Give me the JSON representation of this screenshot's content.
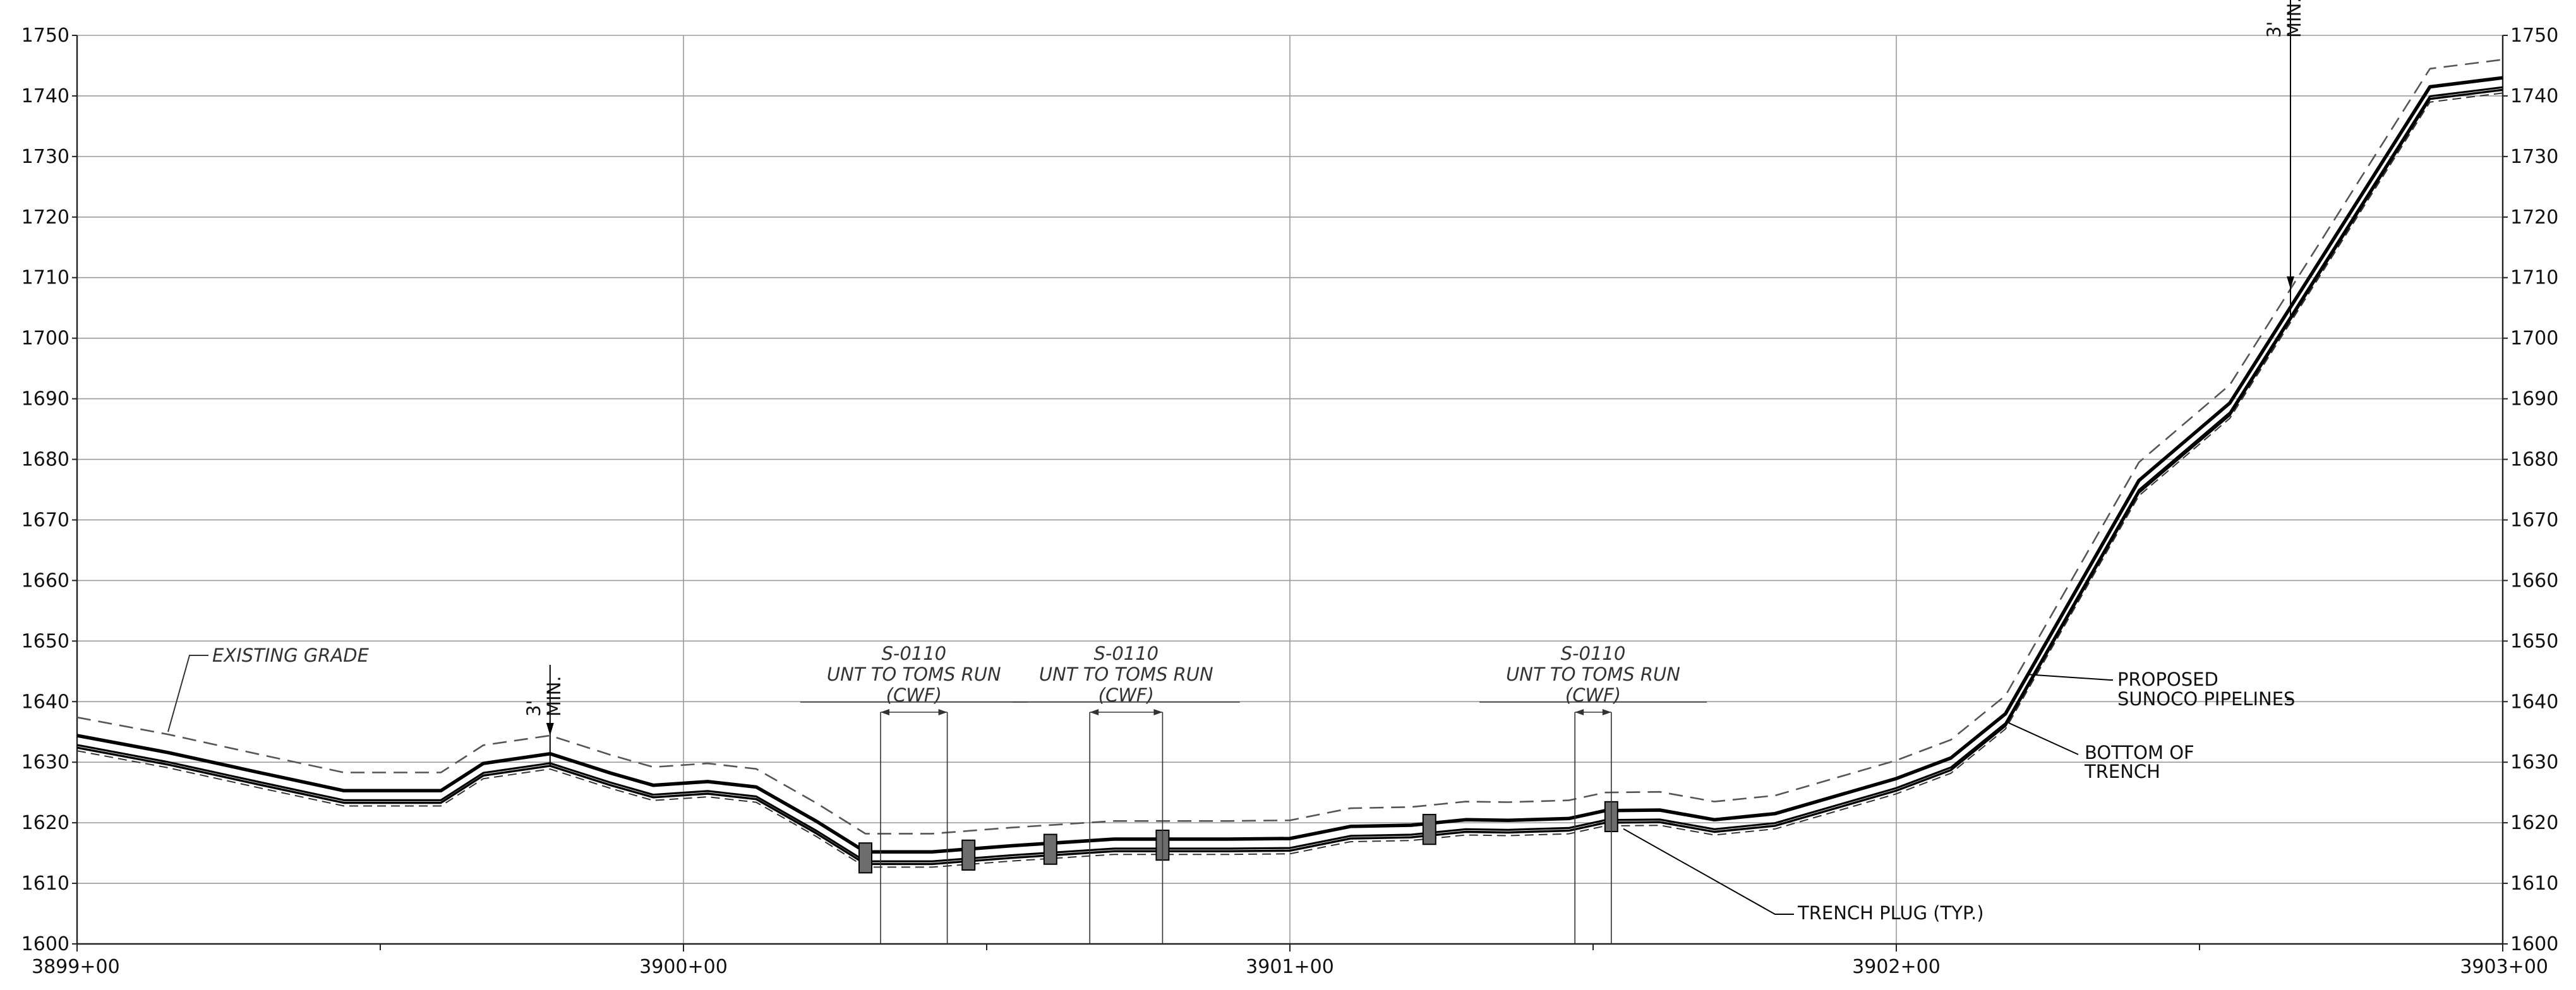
{
  "chart_data": {
    "type": "line",
    "title": "",
    "xlabel": "",
    "ylabel": "",
    "xlim": [
      0,
      400
    ],
    "ylim": [
      1600,
      1750
    ],
    "grid": true,
    "x_ticks": [
      {
        "x": 0,
        "label": "3899+00"
      },
      {
        "x": 100,
        "label": "3900+00"
      },
      {
        "x": 200,
        "label": "3901+00"
      },
      {
        "x": 300,
        "label": "3902+00"
      },
      {
        "x": 400,
        "label": "3903+00"
      }
    ],
    "y_ticks": [
      1600,
      1610,
      1620,
      1630,
      1640,
      1650,
      1660,
      1670,
      1680,
      1690,
      1700,
      1710,
      1720,
      1730,
      1740,
      1750
    ],
    "y_tick_labels": [
      "1600",
      "1610",
      "1620",
      "1630",
      "1640",
      "1650",
      "1660",
      "1670",
      "1680",
      "1690",
      "1700",
      "1710",
      "1720",
      "1730",
      "1740",
      "1750"
    ],
    "series": [
      {
        "name": "EXISTING GRADE",
        "style": "dashed",
        "points": [
          [
            0,
            1637.4
          ],
          [
            15,
            1634.6
          ],
          [
            30,
            1631.3
          ],
          [
            44,
            1628.3
          ],
          [
            60,
            1628.3
          ],
          [
            67,
            1632.8
          ],
          [
            78,
            1634.4
          ],
          [
            88,
            1631.2
          ],
          [
            95,
            1629.2
          ],
          [
            104,
            1629.8
          ],
          [
            112,
            1628.9
          ],
          [
            122,
            1623.2
          ],
          [
            130,
            1618.2
          ],
          [
            141,
            1618.2
          ],
          [
            154,
            1619.2
          ],
          [
            171,
            1620.3
          ],
          [
            190,
            1620.3
          ],
          [
            200,
            1620.4
          ],
          [
            210,
            1622.4
          ],
          [
            220,
            1622.6
          ],
          [
            229,
            1623.5
          ],
          [
            236,
            1623.4
          ],
          [
            246,
            1623.7
          ],
          [
            252,
            1625.0
          ],
          [
            261,
            1625.1
          ],
          [
            270,
            1623.5
          ],
          [
            280,
            1624.5
          ],
          [
            300,
            1630.3
          ],
          [
            309,
            1633.7
          ],
          [
            318,
            1641.0
          ],
          [
            340,
            1679.5
          ],
          [
            355,
            1692.3
          ],
          [
            388,
            1744.5
          ],
          [
            400,
            1746.0
          ]
        ]
      },
      {
        "name": "PROPOSED SUNOCO PIPELINES",
        "style": "solid-double",
        "points": [
          [
            0,
            1634.4
          ],
          [
            15,
            1631.6
          ],
          [
            30,
            1628.3
          ],
          [
            44,
            1625.3
          ],
          [
            60,
            1625.3
          ],
          [
            67,
            1629.8
          ],
          [
            78,
            1631.4
          ],
          [
            88,
            1628.2
          ],
          [
            95,
            1626.2
          ],
          [
            104,
            1626.8
          ],
          [
            112,
            1625.9
          ],
          [
            122,
            1620.2
          ],
          [
            130,
            1615.2
          ],
          [
            141,
            1615.2
          ],
          [
            154,
            1616.2
          ],
          [
            171,
            1617.3
          ],
          [
            190,
            1617.3
          ],
          [
            200,
            1617.4
          ],
          [
            210,
            1619.4
          ],
          [
            220,
            1619.6
          ],
          [
            229,
            1620.5
          ],
          [
            236,
            1620.4
          ],
          [
            246,
            1620.7
          ],
          [
            252,
            1622.0
          ],
          [
            261,
            1622.1
          ],
          [
            270,
            1620.5
          ],
          [
            280,
            1621.5
          ],
          [
            300,
            1627.3
          ],
          [
            309,
            1630.7
          ],
          [
            318,
            1638.0
          ],
          [
            340,
            1676.5
          ],
          [
            355,
            1689.3
          ],
          [
            388,
            1741.5
          ],
          [
            400,
            1743.0
          ]
        ]
      },
      {
        "name": "BOTTOM OF TRENCH",
        "style": "solid-dashed",
        "points": [
          [
            0,
            1632.4
          ],
          [
            15,
            1629.6
          ],
          [
            30,
            1626.3
          ],
          [
            44,
            1623.3
          ],
          [
            60,
            1623.3
          ],
          [
            67,
            1627.8
          ],
          [
            78,
            1629.4
          ],
          [
            88,
            1626.2
          ],
          [
            95,
            1624.2
          ],
          [
            104,
            1624.8
          ],
          [
            112,
            1623.9
          ],
          [
            122,
            1618.2
          ],
          [
            130,
            1613.2
          ],
          [
            141,
            1613.2
          ],
          [
            154,
            1614.2
          ],
          [
            171,
            1615.3
          ],
          [
            190,
            1615.3
          ],
          [
            200,
            1615.4
          ],
          [
            210,
            1617.4
          ],
          [
            220,
            1617.6
          ],
          [
            229,
            1618.5
          ],
          [
            236,
            1618.4
          ],
          [
            246,
            1618.7
          ],
          [
            252,
            1620.0
          ],
          [
            261,
            1620.1
          ],
          [
            270,
            1618.5
          ],
          [
            280,
            1619.5
          ],
          [
            300,
            1625.3
          ],
          [
            309,
            1628.7
          ],
          [
            318,
            1636.0
          ],
          [
            340,
            1674.5
          ],
          [
            355,
            1687.3
          ],
          [
            388,
            1739.5
          ],
          [
            400,
            1741.0
          ]
        ]
      }
    ],
    "trench_plugs": [
      {
        "x": 130,
        "label": ""
      },
      {
        "x": 147,
        "label": ""
      },
      {
        "x": 160.5,
        "label": ""
      },
      {
        "x": 179,
        "label": ""
      },
      {
        "x": 223,
        "label": ""
      },
      {
        "x": 253,
        "label": ""
      }
    ],
    "crossings": [
      {
        "x1": 132.5,
        "x2": 143.5,
        "line1": "S-0110",
        "line2": "UNT TO TOMS RUN",
        "line3": "(CWF)"
      },
      {
        "x1": 167,
        "x2": 179,
        "line1": "S-0110",
        "line2": "UNT TO TOMS RUN",
        "line3": "(CWF)"
      },
      {
        "x1": 247,
        "x2": 253,
        "line1": "S-0110",
        "line2": "UNT TO TOMS RUN",
        "line3": "(CWF)"
      }
    ],
    "cover_notes": [
      {
        "x": 78,
        "line1": "3'",
        "line2": "MIN."
      },
      {
        "x": 365,
        "line1": "3'",
        "line2": "MIN."
      }
    ],
    "annotations": {
      "existing_grade": "EXISTING GRADE",
      "proposed_1": "PROPOSED",
      "proposed_2": "SUNOCO PIPELINES",
      "bottom_1": "BOTTOM OF",
      "bottom_2": "TRENCH",
      "trench_plug": "TRENCH PLUG (TYP.)"
    }
  }
}
